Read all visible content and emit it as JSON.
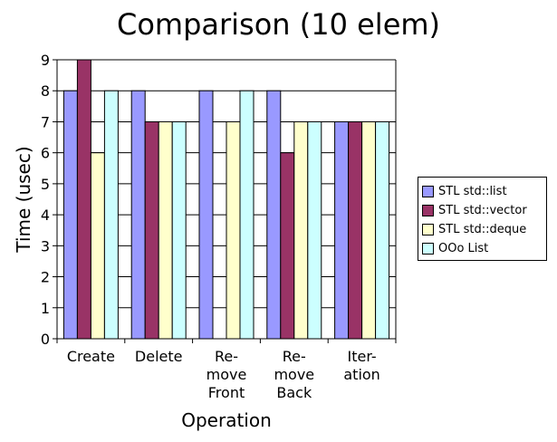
{
  "chart_data": {
    "type": "bar",
    "title": "Comparison (10 elem)",
    "xlabel": "Operation",
    "ylabel": "Time (usec)",
    "ylim": [
      0,
      9
    ],
    "yticks": [
      0,
      1,
      2,
      3,
      4,
      5,
      6,
      7,
      8,
      9
    ],
    "grid": true,
    "legend_position": "right",
    "categories": [
      "Create",
      "Delete",
      "Re-\nmove\nFront",
      "Re-\nmove\nBack",
      "Iter-\nation"
    ],
    "series": [
      {
        "name": "STL std::list",
        "color": "#9999ff",
        "values": [
          8,
          8,
          8,
          8,
          7
        ]
      },
      {
        "name": "STL std::vector",
        "color": "#993366",
        "values": [
          9,
          7,
          0,
          6,
          7
        ]
      },
      {
        "name": "STL std::deque",
        "color": "#ffffcc",
        "values": [
          6,
          7,
          7,
          7,
          7
        ]
      },
      {
        "name": "OOo List",
        "color": "#ccffff",
        "values": [
          8,
          7,
          8,
          7,
          7
        ]
      }
    ]
  }
}
